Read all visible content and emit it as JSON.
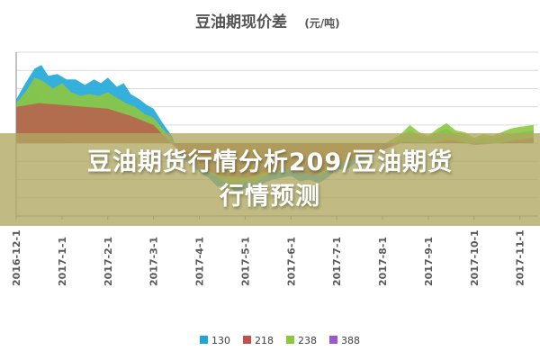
{
  "chart_data": {
    "type": "area",
    "title": "豆油期现价差",
    "title_unit": "(元/吨)",
    "x_ticks": [
      "2016-12-1",
      "2017-1-1",
      "2017-2-1",
      "2017-3-1",
      "2017-4-1",
      "2017-5-1",
      "2017-6-1",
      "2017-7-1",
      "2017-8-1",
      "2017-9-1",
      "2017-10-1",
      "2017-11-1"
    ],
    "x_tick_suffixes": [
      "1",
      "1",
      "1",
      "1",
      "1",
      "1",
      "1",
      "1",
      "1",
      "1",
      "1",
      "1"
    ],
    "legend_position": "bottom",
    "grid": true,
    "series": [
      {
        "name": "130",
        "color": "#1fa6d8",
        "values": [
          [
            0,
            120
          ],
          [
            0.2,
            165
          ],
          [
            0.4,
            205
          ],
          [
            0.55,
            215
          ],
          [
            0.7,
            185
          ],
          [
            0.9,
            190
          ],
          [
            1.1,
            175
          ],
          [
            1.3,
            175
          ],
          [
            1.5,
            160
          ],
          [
            1.7,
            175
          ],
          [
            1.85,
            165
          ],
          [
            2.0,
            180
          ],
          [
            2.2,
            155
          ],
          [
            2.35,
            165
          ],
          [
            2.5,
            135
          ],
          [
            2.7,
            120
          ],
          [
            2.85,
            105
          ],
          [
            3.0,
            95
          ],
          [
            3.2,
            55
          ],
          [
            3.4,
            20
          ],
          [
            3.6,
            -40
          ],
          [
            3.8,
            -55
          ],
          [
            4.0,
            -80
          ],
          [
            4.2,
            -95
          ],
          [
            4.4,
            -120
          ],
          [
            4.6,
            -115
          ],
          [
            4.8,
            -135
          ],
          [
            5.0,
            -125
          ],
          [
            5.2,
            -130
          ],
          [
            5.4,
            -110
          ],
          [
            5.6,
            -100
          ],
          [
            5.8,
            -95
          ],
          [
            6.0,
            -90
          ],
          [
            6.2,
            -105
          ],
          [
            6.4,
            -100
          ],
          [
            6.6,
            -110
          ],
          [
            6.8,
            -95
          ],
          [
            7.0,
            -70
          ],
          [
            7.2,
            -75
          ],
          [
            7.4,
            -55
          ],
          [
            7.6,
            -50
          ],
          [
            7.8,
            -30
          ],
          [
            8.0,
            -20
          ],
          [
            8.2,
            -5
          ],
          [
            8.4,
            15
          ],
          [
            8.6,
            35
          ],
          [
            8.8,
            20
          ],
          [
            9.0,
            15
          ],
          [
            9.2,
            30
          ],
          [
            9.4,
            40
          ],
          [
            9.6,
            25
          ],
          [
            9.8,
            20
          ],
          [
            10.0,
            5
          ],
          [
            10.2,
            15
          ],
          [
            10.4,
            10
          ],
          [
            10.6,
            20
          ],
          [
            10.8,
            25
          ],
          [
            11.0,
            30
          ],
          [
            11.3,
            35
          ]
        ]
      },
      {
        "name": "218",
        "color": "#c0504d",
        "values": [
          [
            0,
            100
          ],
          [
            0.5,
            110
          ],
          [
            1.0,
            105
          ],
          [
            1.5,
            100
          ],
          [
            2.0,
            95
          ],
          [
            2.5,
            75
          ],
          [
            3.0,
            50
          ],
          [
            3.5,
            -15
          ],
          [
            4.0,
            -70
          ],
          [
            4.5,
            -90
          ],
          [
            5.0,
            -95
          ],
          [
            5.5,
            -80
          ],
          [
            6.0,
            -70
          ],
          [
            6.5,
            -90
          ],
          [
            7.0,
            -60
          ],
          [
            7.5,
            -40
          ],
          [
            8.0,
            -20
          ],
          [
            8.5,
            5
          ],
          [
            9.0,
            0
          ],
          [
            9.5,
            10
          ],
          [
            10.0,
            -5
          ],
          [
            10.5,
            0
          ],
          [
            11.0,
            10
          ],
          [
            11.3,
            15
          ]
        ]
      },
      {
        "name": "238",
        "color": "#8dc63f",
        "values": [
          [
            0,
            110
          ],
          [
            0.2,
            140
          ],
          [
            0.4,
            180
          ],
          [
            0.6,
            170
          ],
          [
            0.8,
            150
          ],
          [
            1.0,
            165
          ],
          [
            1.2,
            140
          ],
          [
            1.4,
            130
          ],
          [
            1.6,
            135
          ],
          [
            1.8,
            130
          ],
          [
            2.0,
            140
          ],
          [
            2.2,
            125
          ],
          [
            2.4,
            110
          ],
          [
            2.6,
            100
          ],
          [
            2.8,
            80
          ],
          [
            3.0,
            70
          ],
          [
            3.2,
            40
          ],
          [
            3.4,
            10
          ],
          [
            3.6,
            -25
          ],
          [
            3.8,
            -40
          ],
          [
            4.0,
            -60
          ],
          [
            4.2,
            -80
          ],
          [
            4.4,
            -95
          ],
          [
            4.6,
            -110
          ],
          [
            4.8,
            -115
          ],
          [
            5.0,
            -105
          ],
          [
            5.2,
            -110
          ],
          [
            5.4,
            -95
          ],
          [
            5.6,
            -80
          ],
          [
            5.8,
            -75
          ],
          [
            6.0,
            -70
          ],
          [
            6.2,
            -85
          ],
          [
            6.4,
            -75
          ],
          [
            6.6,
            -90
          ],
          [
            6.8,
            -80
          ],
          [
            7.0,
            -60
          ],
          [
            7.2,
            -55
          ],
          [
            7.4,
            -40
          ],
          [
            7.6,
            -30
          ],
          [
            7.8,
            -15
          ],
          [
            8.0,
            -5
          ],
          [
            8.2,
            10
          ],
          [
            8.4,
            25
          ],
          [
            8.6,
            50
          ],
          [
            8.8,
            30
          ],
          [
            9.0,
            20
          ],
          [
            9.2,
            40
          ],
          [
            9.4,
            55
          ],
          [
            9.6,
            35
          ],
          [
            9.8,
            30
          ],
          [
            10.0,
            15
          ],
          [
            10.2,
            25
          ],
          [
            10.4,
            20
          ],
          [
            10.6,
            30
          ],
          [
            10.8,
            40
          ],
          [
            11.0,
            45
          ],
          [
            11.3,
            50
          ]
        ]
      },
      {
        "name": "388",
        "color": "#9b59d0",
        "values": [
          [
            0,
            100
          ],
          [
            0.2,
            130
          ],
          [
            0.35,
            160
          ],
          [
            0.5,
            115
          ],
          [
            0.65,
            105
          ],
          [
            0.8,
            60
          ],
          [
            1.0,
            45
          ],
          [
            1.1,
            30
          ]
        ]
      }
    ]
  }
}
